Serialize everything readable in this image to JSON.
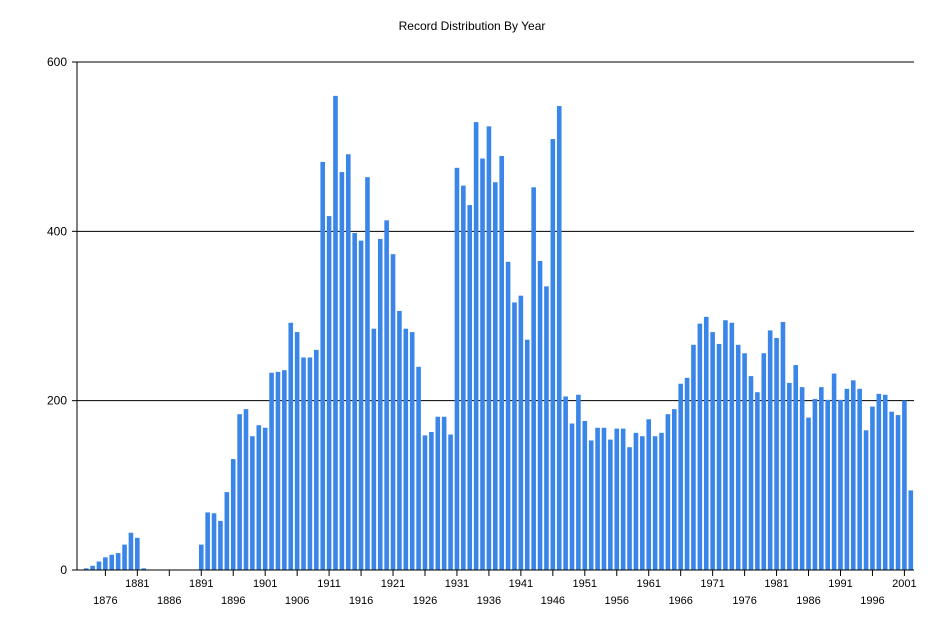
{
  "chart_data": {
    "type": "bar",
    "title": "Record Distribution By Year",
    "xlabel": "",
    "ylabel": "",
    "ylim": [
      0,
      600
    ],
    "yticks": [
      0,
      200,
      400,
      600
    ],
    "grid": true,
    "bar_color": "#3a86e8",
    "x_start": 1873,
    "x_end": 2002,
    "xtick_row1": [
      "1881",
      "1891",
      "1901",
      "1911",
      "1921",
      "1931",
      "1941",
      "1951",
      "1961",
      "1971",
      "1981",
      "1991",
      "2001"
    ],
    "xtick_row2": [
      "1876",
      "1886",
      "1896",
      "1906",
      "1916",
      "1926",
      "1936",
      "1946",
      "1956",
      "1966",
      "1976",
      "1986",
      "1996"
    ],
    "categories": [
      1873,
      1874,
      1875,
      1876,
      1877,
      1878,
      1879,
      1880,
      1881,
      1882,
      1883,
      1884,
      1885,
      1886,
      1887,
      1888,
      1889,
      1890,
      1891,
      1892,
      1893,
      1894,
      1895,
      1896,
      1897,
      1898,
      1899,
      1900,
      1901,
      1902,
      1903,
      1904,
      1905,
      1906,
      1907,
      1908,
      1909,
      1910,
      1911,
      1912,
      1913,
      1914,
      1915,
      1916,
      1917,
      1918,
      1919,
      1920,
      1921,
      1922,
      1923,
      1924,
      1925,
      1926,
      1927,
      1928,
      1929,
      1930,
      1931,
      1932,
      1933,
      1934,
      1935,
      1936,
      1937,
      1938,
      1939,
      1940,
      1941,
      1942,
      1943,
      1944,
      1945,
      1946,
      1947,
      1948,
      1949,
      1950,
      1951,
      1952,
      1953,
      1954,
      1955,
      1956,
      1957,
      1958,
      1959,
      1960,
      1961,
      1962,
      1963,
      1964,
      1965,
      1966,
      1967,
      1968,
      1969,
      1970,
      1971,
      1972,
      1973,
      1974,
      1975,
      1976,
      1977,
      1978,
      1979,
      1980,
      1981,
      1982,
      1983,
      1984,
      1985,
      1986,
      1987,
      1988,
      1989,
      1990,
      1991,
      1992,
      1993,
      1994,
      1995,
      1996,
      1997,
      1998,
      1999,
      2000,
      2001,
      2002
    ],
    "values": [
      2,
      5,
      10,
      15,
      18,
      20,
      30,
      44,
      38,
      2,
      0,
      0,
      0,
      0,
      0,
      0,
      0,
      0,
      30,
      68,
      67,
      58,
      92,
      131,
      184,
      190,
      158,
      171,
      168,
      233,
      234,
      236,
      292,
      281,
      251,
      251,
      260,
      482,
      418,
      560,
      470,
      491,
      398,
      389,
      464,
      285,
      391,
      413,
      373,
      306,
      285,
      281,
      240,
      159,
      163,
      181,
      181,
      160,
      475,
      454,
      431,
      529,
      486,
      524,
      458,
      489,
      364,
      316,
      324,
      272,
      452,
      365,
      335,
      509,
      548,
      205,
      173,
      207,
      176,
      153,
      168,
      168,
      154,
      167,
      167,
      145,
      162,
      158,
      178,
      158,
      162,
      184,
      190,
      220,
      227,
      266,
      291,
      299,
      281,
      267,
      295,
      292,
      266,
      256,
      229,
      210,
      256,
      283,
      274,
      293,
      221,
      242,
      216,
      180,
      202,
      216,
      201,
      232,
      201,
      214,
      224,
      214,
      165,
      193,
      208,
      207,
      187,
      183,
      200,
      94
    ]
  }
}
